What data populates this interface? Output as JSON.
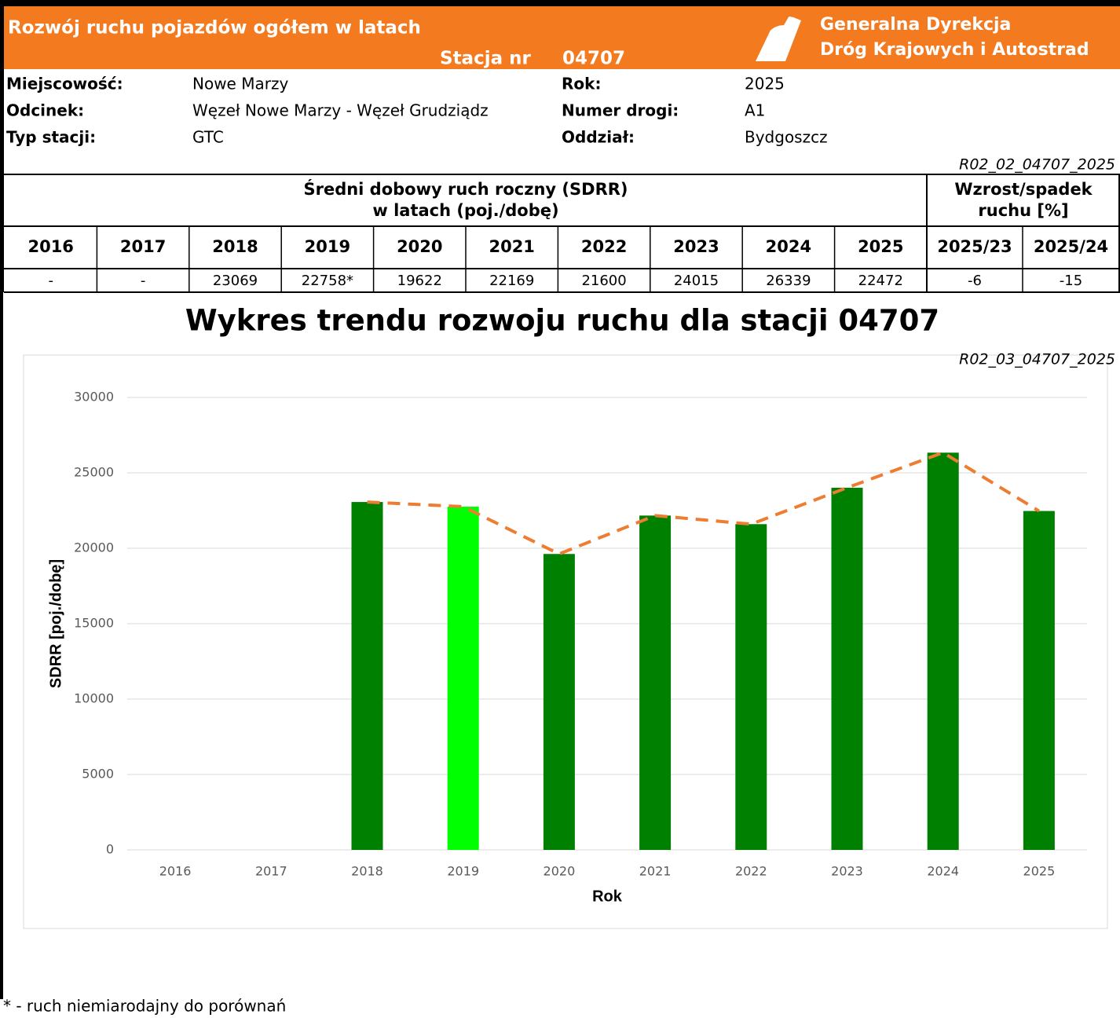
{
  "header": {
    "title": "Rozwój ruchu pojazdów ogółem w latach",
    "station_label": "Stacja nr",
    "station_number": "04707",
    "org_lines": [
      "Generalna Dyrekcja",
      "Dróg Krajowych i Autostrad"
    ]
  },
  "info": {
    "left": [
      {
        "label": "Miejscowość:",
        "value": "Nowe Marzy"
      },
      {
        "label": "Odcinek:",
        "value": "Węzeł Nowe Marzy - Węzeł Grudziądz"
      },
      {
        "label": "Typ stacji:",
        "value": "GTC"
      }
    ],
    "right": [
      {
        "label": "Rok:",
        "value": "2025"
      },
      {
        "label": "Numer drogi:",
        "value": "A1"
      },
      {
        "label": "Oddział:",
        "value": "Bydgoszcz"
      }
    ]
  },
  "table": {
    "id": "R02_02_04707_2025",
    "sdrr_header": [
      "Średni dobowy ruch roczny (SDRR)",
      "w latach (poj./dobę)"
    ],
    "change_header": [
      "Wzrost/spadek",
      "ruchu [%]"
    ],
    "columns": [
      "2016",
      "2017",
      "2018",
      "2019",
      "2020",
      "2021",
      "2022",
      "2023",
      "2024",
      "2025",
      "2025/23",
      "2025/24"
    ],
    "row": [
      "-",
      "-",
      "23069",
      "22758*",
      "19622",
      "22169",
      "21600",
      "24015",
      "26339",
      "22472",
      "-6",
      "-15"
    ]
  },
  "chart_data": {
    "type": "bar",
    "title": "Wykres trendu rozwoju ruchu dla stacji 04707",
    "chart_id": "R02_03_04707_2025",
    "x_label": "Rok",
    "y_label": "SDRR [poj./dobę]",
    "categories": [
      "2016",
      "2017",
      "2018",
      "2019",
      "2020",
      "2021",
      "2022",
      "2023",
      "2024",
      "2025"
    ],
    "values": [
      null,
      null,
      23069,
      22758,
      19622,
      22169,
      21600,
      24015,
      26339,
      22472
    ],
    "colors": [
      null,
      null,
      "#008000",
      "#00ff00",
      "#008000",
      "#008000",
      "#008000",
      "#008000",
      "#008000",
      "#008000"
    ],
    "trend_line": {
      "color": "#ed7d31",
      "style": "dashed"
    },
    "ylim": [
      0,
      30000
    ],
    "yticks": [
      0,
      5000,
      10000,
      15000,
      20000,
      25000,
      30000
    ],
    "grid": true
  },
  "footnote": "* - ruch niemiarodajny do porównań"
}
